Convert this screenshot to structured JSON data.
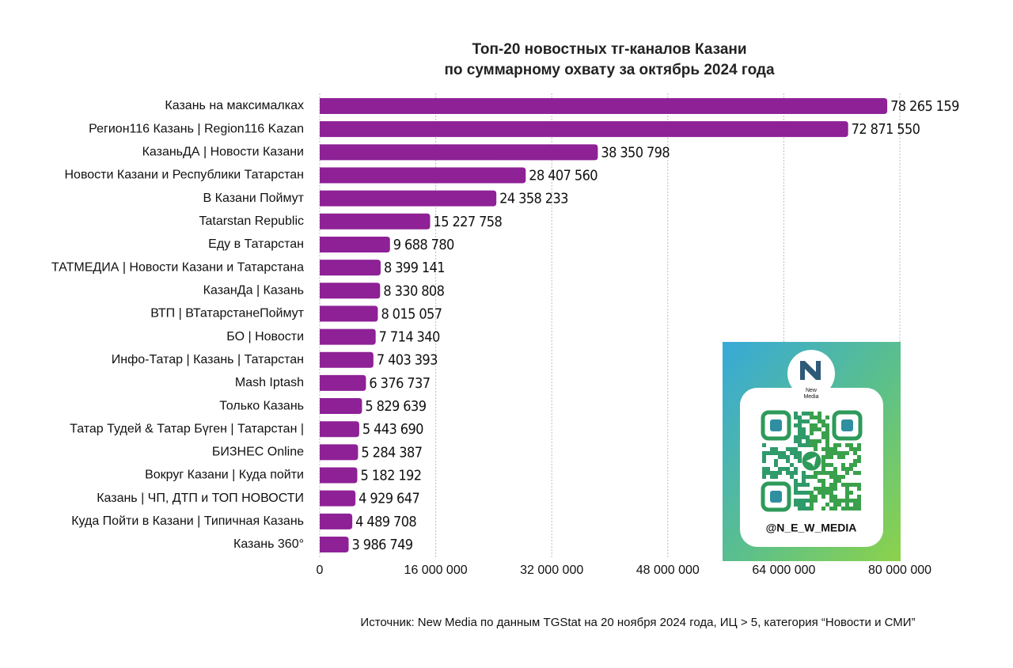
{
  "chart_data": {
    "type": "hbar",
    "title": "Топ-20 новостных тг-каналов Казани",
    "subtitle": "по суммарному охвату за октябрь 2024 года",
    "source": "Источник: New Media по данным TGStat на 20 ноября 2024 года, ИЦ > 5, категория “Новости и СМИ”",
    "logo_text": [
      "New",
      "Media"
    ],
    "qr_handle": "@N_E_W_MEDIA",
    "color": "#8e2196",
    "categories": [
      "Казань на максималках",
      "Регион116 Казань | Region116 Kazan",
      "КазаньДА | Новости Казани",
      "Новости Казани и Республики Татарстан",
      "В Казани Поймут",
      "Tatarstan Republic",
      "Еду в Татарстан",
      "ТАТМЕДИА | Новости Казани и Татарстана",
      "КазанДа | Казань",
      "ВТП | ВТатарстанеПоймут",
      "БО | Новости",
      "Инфо-Татар | Казань | Татарстан",
      "Mash Iptash",
      "Только Казань",
      "Татар Тудей & Татар Бүген | Татарстан |",
      "БИЗНЕС Online",
      "Вокруг Казани | Куда пойти",
      "Казань | ЧП, ДТП и ТОП НОВОСТИ",
      "Куда Пойти в Казани | Типичная Казань",
      "Казань 360°"
    ],
    "values": [
      78265159,
      72871550,
      38350798,
      28407560,
      24358233,
      15227758,
      9688780,
      8399141,
      8330808,
      8015057,
      7714340,
      7403393,
      6376737,
      5829639,
      5443690,
      5284387,
      5182192,
      4929647,
      4489708,
      3986749
    ],
    "value_labels": [
      "78 265 159",
      "72 871 550",
      "38 350 798",
      "28 407 560",
      "24 358 233",
      "15 227 758",
      "9 688 780",
      "8 399 141",
      "8 330 808",
      "8 015 057",
      "7 714 340",
      "7 403 393",
      "6 376 737",
      "5 829 639",
      "5 443 690",
      "5 284 387",
      "5 182 192",
      "4 929 647",
      "4 489 708",
      "3 986 749"
    ],
    "xlim": [
      0,
      80000000
    ],
    "xticks": [
      0,
      {
        "value": 16000000,
        "label": "16 000 000"
      },
      {
        "value": 32000000,
        "label": "32 000 000"
      },
      {
        "value": 48000000,
        "label": "48 000 000"
      },
      {
        "value": 64000000,
        "label": "64 000 000"
      },
      {
        "value": 80000000,
        "label": "80 000 000"
      }
    ],
    "grid": true
  }
}
